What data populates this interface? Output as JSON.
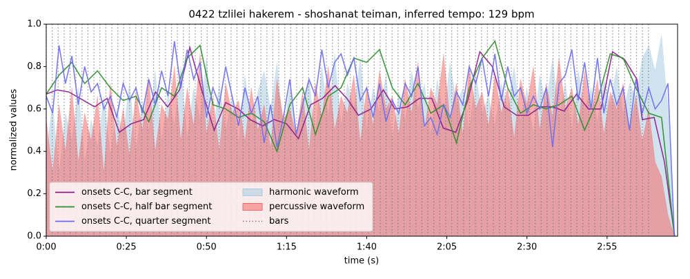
{
  "chart_data": {
    "type": "line",
    "title": "0422 tzlilei hakerem - shoshanat teiman, inferred tempo: 129 bpm",
    "xlabel": "time (s)",
    "ylabel": "normalized values",
    "xlim": [
      0,
      197
    ],
    "ylim": [
      0,
      1
    ],
    "xticks": [
      {
        "value": 0,
        "label": "0:00"
      },
      {
        "value": 25,
        "label": "0:25"
      },
      {
        "value": 50,
        "label": "0:50"
      },
      {
        "value": 75,
        "label": "1:15"
      },
      {
        "value": 100,
        "label": "1:40"
      },
      {
        "value": 125,
        "label": "2:05"
      },
      {
        "value": 150,
        "label": "2:30"
      },
      {
        "value": 175,
        "label": "2:55"
      }
    ],
    "yticks": [
      {
        "value": 0,
        "label": "0.0"
      },
      0.2,
      0.4,
      0.6,
      0.8,
      {
        "value": 1,
        "label": "1.0"
      }
    ],
    "legend": "lower left",
    "x": [
      0,
      2,
      4,
      6,
      8,
      10,
      12,
      14,
      16,
      18,
      20,
      22,
      24,
      26,
      28,
      30,
      32,
      34,
      36,
      38,
      40,
      42,
      44,
      46,
      48,
      50,
      52,
      54,
      56,
      58,
      60,
      62,
      64,
      66,
      68,
      70,
      72,
      74,
      76,
      78,
      80,
      82,
      84,
      86,
      88,
      90,
      92,
      94,
      96,
      98,
      100,
      102,
      104,
      106,
      108,
      110,
      112,
      114,
      116,
      118,
      120,
      122,
      124,
      126,
      128,
      130,
      132,
      134,
      136,
      138,
      140,
      142,
      144,
      146,
      148,
      150,
      152,
      154,
      156,
      158,
      160,
      162,
      164,
      166,
      168,
      170,
      172,
      174,
      176,
      178,
      180,
      182,
      184,
      186,
      188,
      190,
      192,
      194,
      196
    ],
    "series": [
      {
        "name": "onsets C-C, bar segment",
        "color": "#8b1a8b",
        "x": [
          0,
          3.4,
          7.1,
          15.1,
          19.0,
          22.8,
          26.5,
          30.4,
          34.1,
          37.9,
          41.6,
          44.8,
          48.5,
          52.4,
          56.0,
          59.9,
          63.6,
          67.5,
          71.1,
          75.0,
          78.7,
          82.5,
          86.2,
          90.1,
          93.8,
          97.4,
          101.3,
          105.2,
          108.8,
          112.7,
          116.4,
          120.3,
          123.9,
          127.8,
          131.5,
          135.3,
          139.2,
          142.9,
          146.8,
          150.4,
          154.3,
          158.0,
          161.6,
          165.5,
          169.2,
          173.1,
          176.7,
          180.6,
          184.3,
          186.0,
          189.7,
          192.9,
          196.1
        ],
        "values": [
          0.67,
          0.69,
          0.68,
          0.61,
          0.65,
          0.49,
          0.53,
          0.55,
          0.68,
          0.61,
          0.69,
          0.89,
          0.69,
          0.5,
          0.63,
          0.6,
          0.55,
          0.52,
          0.55,
          0.53,
          0.46,
          0.62,
          0.65,
          0.71,
          0.65,
          0.57,
          0.6,
          0.69,
          0.6,
          0.61,
          0.65,
          0.65,
          0.51,
          0.49,
          0.64,
          0.87,
          0.8,
          0.61,
          0.57,
          0.57,
          0.61,
          0.61,
          0.59,
          0.67,
          0.6,
          0.6,
          0.87,
          0.83,
          0.74,
          0.55,
          0.56,
          0.35,
          0
        ]
      },
      {
        "name": "onsets C-C, half bar segment",
        "color": "#2a8c2a",
        "x": [
          0,
          4,
          8,
          12,
          16,
          20,
          24,
          28,
          32,
          36,
          40,
          44,
          48,
          52,
          56,
          60,
          64,
          68,
          72,
          76,
          80,
          84,
          88,
          92,
          96,
          100,
          104,
          108,
          112,
          116,
          120,
          124,
          128,
          132,
          136,
          140,
          144,
          148,
          152,
          156,
          160,
          164,
          168,
          172,
          176,
          180,
          184,
          188,
          192,
          196
        ],
        "values": [
          0.67,
          0.76,
          0.82,
          0.72,
          0.78,
          0.7,
          0.64,
          0.66,
          0.54,
          0.7,
          0.66,
          0.84,
          0.9,
          0.62,
          0.6,
          0.56,
          0.58,
          0.54,
          0.4,
          0.62,
          0.7,
          0.48,
          0.66,
          0.7,
          0.84,
          0.82,
          0.88,
          0.7,
          0.62,
          0.72,
          0.58,
          0.62,
          0.44,
          0.7,
          0.84,
          0.92,
          0.7,
          0.58,
          0.62,
          0.6,
          0.62,
          0.66,
          0.5,
          0.64,
          0.86,
          0.84,
          0.7,
          0.58,
          0.56,
          0
        ]
      },
      {
        "name": "onsets C-C, quarter segment",
        "color": "#6b6bef",
        "values": [
          0.66,
          0.58,
          0.9,
          0.72,
          0.85,
          0.62,
          0.8,
          0.68,
          0.72,
          0.6,
          0.66,
          0.56,
          0.72,
          0.64,
          0.7,
          0.58,
          0.74,
          0.62,
          0.78,
          0.66,
          0.92,
          0.7,
          0.88,
          0.74,
          0.82,
          0.56,
          0.7,
          0.62,
          0.8,
          0.66,
          0.52,
          0.7,
          0.58,
          0.66,
          0.44,
          0.62,
          0.42,
          0.56,
          0.74,
          0.48,
          0.62,
          0.74,
          0.66,
          0.88,
          0.7,
          0.82,
          0.86,
          0.76,
          0.84,
          0.64,
          0.7,
          0.56,
          0.72,
          0.54,
          0.64,
          0.58,
          0.72,
          0.66,
          0.8,
          0.52,
          0.56,
          0.48,
          0.62,
          0.56,
          0.68,
          0.62,
          0.8,
          0.72,
          0.84,
          0.66,
          0.86,
          0.64,
          0.8,
          0.66,
          0.7,
          0.58,
          0.66,
          0.6,
          0.7,
          0.42,
          0.72,
          0.76,
          0.88,
          0.64,
          0.82,
          0.6,
          0.84,
          0.58,
          0.74,
          0.62,
          0.7,
          0.5,
          0.74,
          0.58,
          0.7,
          0.6,
          0.64,
          0.72,
          0
        ]
      },
      {
        "name": "harmonic waveform",
        "color": "#a9cce0",
        "type": "area",
        "values": [
          0.4,
          0.62,
          0.3,
          0.58,
          0.45,
          0.7,
          0.35,
          0.55,
          0.42,
          0.66,
          0.38,
          0.6,
          0.48,
          0.72,
          0.4,
          0.64,
          0.5,
          0.78,
          0.45,
          0.68,
          0.52,
          0.8,
          0.46,
          0.7,
          0.55,
          0.84,
          0.48,
          0.72,
          0.5,
          0.66,
          0.44,
          0.76,
          0.52,
          0.68,
          0.78,
          0.6,
          0.82,
          0.5,
          0.7,
          0.46,
          0.62,
          0.74,
          0.48,
          0.8,
          0.56,
          0.86,
          0.52,
          0.72,
          0.6,
          0.84,
          0.5,
          0.7,
          0.58,
          0.76,
          0.46,
          0.68,
          0.54,
          0.78,
          0.6,
          0.72,
          0.48,
          0.74,
          0.56,
          0.82,
          0.62,
          0.7,
          0.5,
          0.76,
          0.58,
          0.66,
          0.52,
          0.72,
          0.6,
          0.8,
          0.54,
          0.7,
          0.48,
          0.76,
          0.62,
          0.84,
          0.56,
          0.72,
          0.5,
          0.78,
          0.6,
          0.7,
          0.54,
          0.74,
          0.62,
          0.8,
          0.58,
          0.72,
          0.66,
          0.84,
          0.9,
          0.78,
          0.95,
          0.6,
          0
        ]
      },
      {
        "name": "percussive waveform",
        "color": "#f46a6a",
        "type": "area",
        "values": [
          0.55,
          0.3,
          0.62,
          0.4,
          0.7,
          0.35,
          0.58,
          0.45,
          0.66,
          0.3,
          0.72,
          0.42,
          0.6,
          0.38,
          0.68,
          0.5,
          0.75,
          0.4,
          0.62,
          0.55,
          0.8,
          0.45,
          0.7,
          0.52,
          0.86,
          0.48,
          0.66,
          0.4,
          0.72,
          0.58,
          0.64,
          0.45,
          0.7,
          0.5,
          0.62,
          0.42,
          0.74,
          0.55,
          0.6,
          0.48,
          0.68,
          0.4,
          0.72,
          0.56,
          0.8,
          0.5,
          0.66,
          0.58,
          0.76,
          0.44,
          0.7,
          0.52,
          0.78,
          0.6,
          0.66,
          0.48,
          0.74,
          0.58,
          0.82,
          0.5,
          0.7,
          0.62,
          0.86,
          0.55,
          0.72,
          0.48,
          0.8,
          0.6,
          0.68,
          0.52,
          0.76,
          0.58,
          0.7,
          0.46,
          0.74,
          0.62,
          0.8,
          0.5,
          0.72,
          0.56,
          0.84,
          0.6,
          0.7,
          0.52,
          0.78,
          0.58,
          0.74,
          0.48,
          0.68,
          0.6,
          0.72,
          0.5,
          0.66,
          0.45,
          0.6,
          0.35,
          0.28,
          0.1,
          0
        ]
      }
    ],
    "bars": {
      "name": "bars",
      "color": "#777777",
      "x": [
        0,
        1.86,
        3.72,
        5.58,
        7.44,
        9.3,
        11.16,
        13.02,
        14.88,
        16.74,
        18.6,
        20.47,
        22.33,
        24.19,
        26.05,
        27.91,
        29.77,
        31.63,
        33.49,
        35.35,
        37.21,
        39.07,
        40.93,
        42.79,
        44.65,
        46.51,
        48.37,
        50.23,
        52.09,
        53.95,
        55.81,
        57.67,
        59.53,
        61.4,
        63.26,
        65.12,
        66.98,
        68.84,
        70.7,
        72.56,
        74.42,
        76.28,
        78.14,
        80,
        81.86,
        83.72,
        85.58,
        87.44,
        89.3,
        91.16,
        93.02,
        94.88,
        96.74,
        98.6,
        100.47,
        102.33,
        104.19,
        106.05,
        107.91,
        109.77,
        111.63,
        113.49,
        115.35,
        117.21,
        119.07,
        120.93,
        122.79,
        124.65,
        126.51,
        128.37,
        130.23,
        132.09,
        133.95,
        135.81,
        137.67,
        139.53,
        141.4,
        143.26,
        145.12,
        146.98,
        148.84,
        150.7,
        152.56,
        154.42,
        156.28,
        158.14,
        160,
        161.86,
        163.72,
        165.58,
        167.44,
        169.3,
        171.16,
        173.02,
        174.88,
        176.74,
        178.6,
        180.47,
        182.33,
        184.19,
        186.05,
        187.91
      ]
    }
  }
}
